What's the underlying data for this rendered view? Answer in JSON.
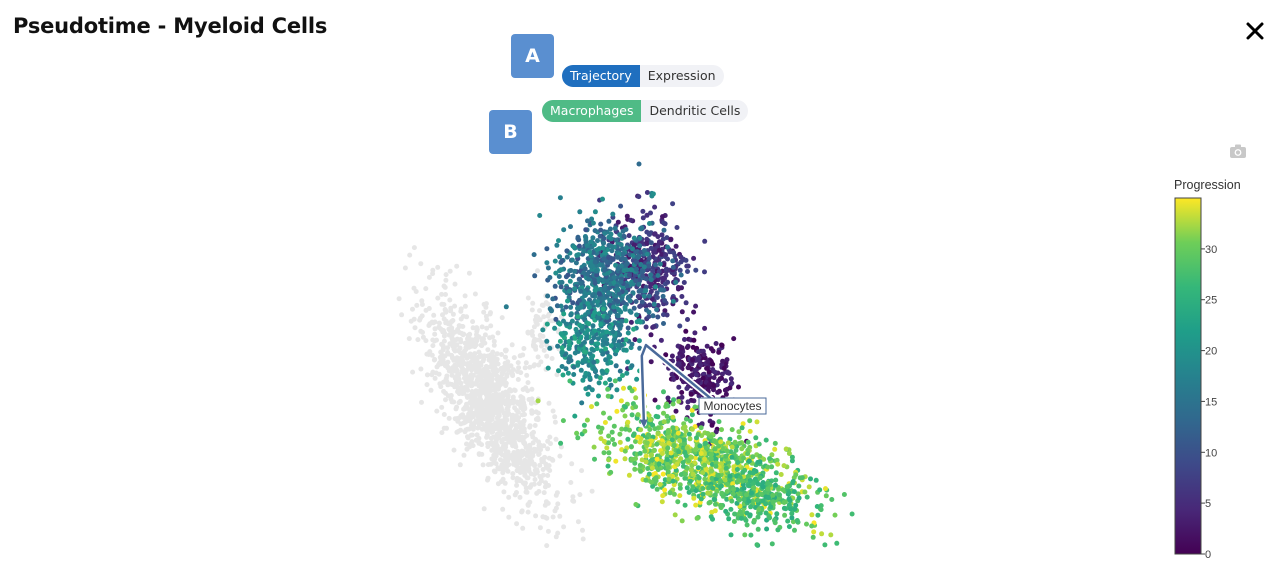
{
  "page": {
    "title": "Pseudotime - Myeloid Cells"
  },
  "markers": {
    "a": "A",
    "b": "B"
  },
  "toggle_a": {
    "options": [
      "Trajectory",
      "Expression"
    ],
    "selected": "Trajectory",
    "active_color": "#1f6fbf"
  },
  "toggle_b": {
    "options": [
      "Macrophages",
      "Dendritic Cells"
    ],
    "selected": "Macrophages",
    "active_color": "#4fbb86"
  },
  "icons": {
    "close": "close-icon",
    "camera": "camera-icon"
  },
  "chart_data": {
    "type": "scatter",
    "title": "",
    "xlabel": "",
    "ylabel": "",
    "grid": false,
    "colorscale": "viridis",
    "colorbar": {
      "title": "Progression",
      "range": [
        0,
        35
      ],
      "ticks": [
        0,
        5,
        10,
        15,
        20,
        25,
        30
      ]
    },
    "unassigned_color": "#e6e6e6",
    "trajectory": {
      "label": "Monocytes",
      "line_color": "#4a6a9a"
    },
    "clusters": [
      {
        "group": "unassigned",
        "n": 1300,
        "cx": 0.18,
        "cy": 0.4,
        "sx": 0.075,
        "sy": 0.14,
        "rho": -0.72,
        "progression": null
      },
      {
        "group": "unassigned",
        "n": 70,
        "cx": 0.3,
        "cy": 0.58,
        "sx": 0.025,
        "sy": 0.06,
        "rho": 0.0,
        "progression": null
      },
      {
        "group": "early",
        "n": 270,
        "cx": 0.68,
        "cy": 0.47,
        "sx": 0.042,
        "sy": 0.06,
        "rho": -0.3,
        "progression": [
          0,
          5
        ]
      },
      {
        "group": "early",
        "n": 330,
        "cx": 0.56,
        "cy": 0.78,
        "sx": 0.05,
        "sy": 0.075,
        "rho": -0.2,
        "progression": [
          2,
          9
        ]
      },
      {
        "group": "mid",
        "n": 650,
        "cx": 0.45,
        "cy": 0.75,
        "sx": 0.06,
        "sy": 0.085,
        "rho": 0.0,
        "progression": [
          10,
          20
        ]
      },
      {
        "group": "mid",
        "n": 230,
        "cx": 0.42,
        "cy": 0.55,
        "sx": 0.05,
        "sy": 0.055,
        "rho": 0.0,
        "progression": [
          15,
          24
        ]
      },
      {
        "group": "late",
        "n": 950,
        "cx": 0.68,
        "cy": 0.23,
        "sx": 0.12,
        "sy": 0.075,
        "rho": -0.6,
        "progression": [
          26,
          35
        ]
      },
      {
        "group": "late",
        "n": 200,
        "cx": 0.82,
        "cy": 0.14,
        "sx": 0.06,
        "sy": 0.05,
        "rho": -0.3,
        "progression": [
          24,
          30
        ]
      }
    ]
  }
}
